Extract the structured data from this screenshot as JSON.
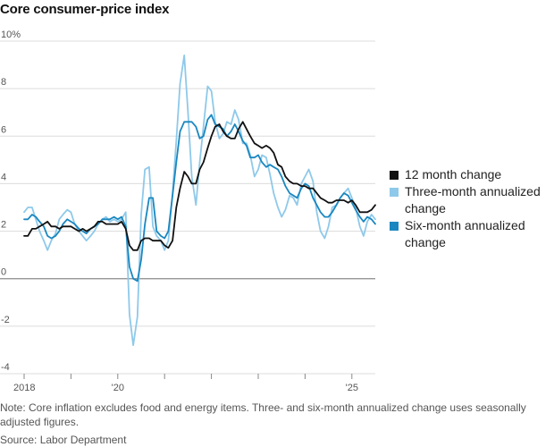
{
  "chart_data": {
    "type": "line",
    "title": "Core consumer-price index",
    "x_tick_labels": [
      "2018",
      "'20",
      "'25"
    ],
    "x_tick_years": [
      2018,
      2020,
      2025
    ],
    "xlim": [
      2018.0,
      2025.5
    ],
    "y_tick_labels": [
      "10%",
      "8",
      "6",
      "4",
      "2",
      "0",
      "-2",
      "-4"
    ],
    "y_tick_values": [
      10,
      8,
      6,
      4,
      2,
      0,
      -2,
      -4
    ],
    "ylim": [
      -4,
      10
    ],
    "grid": "horizontal",
    "legend_position": "right",
    "series": [
      {
        "name": "12 month change",
        "color": "#111111",
        "x": [
          2018.0,
          2018.08,
          2018.17,
          2018.25,
          2018.33,
          2018.42,
          2018.5,
          2018.58,
          2018.67,
          2018.75,
          2018.83,
          2018.92,
          2019.0,
          2019.08,
          2019.17,
          2019.25,
          2019.33,
          2019.42,
          2019.5,
          2019.58,
          2019.67,
          2019.75,
          2019.83,
          2019.92,
          2020.0,
          2020.08,
          2020.17,
          2020.25,
          2020.33,
          2020.42,
          2020.5,
          2020.58,
          2020.67,
          2020.75,
          2020.83,
          2020.92,
          2021.0,
          2021.08,
          2021.17,
          2021.25,
          2021.33,
          2021.42,
          2021.5,
          2021.58,
          2021.67,
          2021.75,
          2021.83,
          2021.92,
          2022.0,
          2022.08,
          2022.17,
          2022.25,
          2022.33,
          2022.42,
          2022.5,
          2022.58,
          2022.67,
          2022.75,
          2022.83,
          2022.92,
          2023.0,
          2023.08,
          2023.17,
          2023.25,
          2023.33,
          2023.42,
          2023.5,
          2023.58,
          2023.67,
          2023.75,
          2023.83,
          2023.92,
          2024.0,
          2024.08,
          2024.17,
          2024.25,
          2024.33,
          2024.42,
          2024.5,
          2024.58,
          2024.67,
          2024.75,
          2024.83,
          2024.92,
          2025.0,
          2025.08,
          2025.17,
          2025.25,
          2025.33,
          2025.42,
          2025.5
        ],
        "values": [
          1.8,
          1.8,
          2.1,
          2.1,
          2.2,
          2.3,
          2.4,
          2.2,
          2.2,
          2.1,
          2.2,
          2.2,
          2.2,
          2.1,
          2.0,
          2.1,
          2.0,
          2.1,
          2.2,
          2.4,
          2.4,
          2.3,
          2.3,
          2.3,
          2.3,
          2.4,
          2.1,
          1.4,
          1.2,
          1.2,
          1.6,
          1.7,
          1.7,
          1.6,
          1.6,
          1.6,
          1.4,
          1.3,
          1.6,
          3.0,
          3.8,
          4.5,
          4.3,
          4.0,
          4.0,
          4.6,
          4.9,
          5.5,
          6.0,
          6.4,
          6.5,
          6.2,
          6.0,
          5.9,
          5.9,
          6.3,
          6.6,
          6.3,
          6.0,
          5.7,
          5.6,
          5.5,
          5.6,
          5.5,
          5.3,
          4.8,
          4.7,
          4.3,
          4.1,
          4.0,
          4.0,
          3.9,
          3.9,
          3.8,
          3.8,
          3.6,
          3.4,
          3.3,
          3.2,
          3.2,
          3.3,
          3.3,
          3.3,
          3.2,
          3.3,
          3.1,
          2.8,
          2.8,
          2.8,
          2.9,
          3.1
        ]
      },
      {
        "name": "Three-month annualized change",
        "color": "#8ec9ea",
        "x": [
          2018.0,
          2018.08,
          2018.17,
          2018.25,
          2018.33,
          2018.42,
          2018.5,
          2018.58,
          2018.67,
          2018.75,
          2018.83,
          2018.92,
          2019.0,
          2019.08,
          2019.17,
          2019.25,
          2019.33,
          2019.42,
          2019.5,
          2019.58,
          2019.67,
          2019.75,
          2019.83,
          2019.92,
          2020.0,
          2020.08,
          2020.17,
          2020.25,
          2020.33,
          2020.42,
          2020.5,
          2020.58,
          2020.67,
          2020.75,
          2020.83,
          2020.92,
          2021.0,
          2021.08,
          2021.17,
          2021.25,
          2021.33,
          2021.42,
          2021.5,
          2021.58,
          2021.67,
          2021.75,
          2021.83,
          2021.92,
          2022.0,
          2022.08,
          2022.17,
          2022.25,
          2022.33,
          2022.42,
          2022.5,
          2022.58,
          2022.67,
          2022.75,
          2022.83,
          2022.92,
          2023.0,
          2023.08,
          2023.17,
          2023.25,
          2023.33,
          2023.42,
          2023.5,
          2023.58,
          2023.67,
          2023.75,
          2023.83,
          2023.92,
          2024.0,
          2024.08,
          2024.17,
          2024.25,
          2024.33,
          2024.42,
          2024.5,
          2024.58,
          2024.67,
          2024.75,
          2024.83,
          2024.92,
          2025.0,
          2025.08,
          2025.17,
          2025.25,
          2025.33,
          2025.42,
          2025.5
        ],
        "values": [
          2.8,
          3.0,
          3.0,
          2.5,
          2.0,
          1.6,
          1.2,
          1.6,
          1.9,
          2.5,
          2.7,
          2.9,
          2.8,
          2.3,
          2.0,
          1.8,
          1.6,
          1.8,
          2.0,
          2.3,
          2.5,
          2.6,
          2.4,
          2.5,
          2.4,
          2.5,
          2.8,
          -1.5,
          -2.8,
          -1.6,
          2.7,
          4.6,
          4.7,
          2.2,
          1.8,
          1.6,
          1.2,
          1.6,
          3.6,
          5.8,
          8.2,
          9.4,
          7.0,
          4.3,
          3.1,
          4.9,
          6.4,
          8.1,
          7.9,
          6.6,
          5.9,
          6.1,
          6.6,
          6.5,
          7.1,
          6.7,
          5.7,
          5.7,
          5.2,
          4.3,
          4.6,
          5.2,
          5.1,
          4.4,
          3.6,
          3.0,
          2.6,
          2.9,
          3.5,
          3.4,
          3.1,
          4.0,
          4.3,
          4.6,
          4.1,
          2.8,
          2.0,
          1.7,
          2.2,
          3.0,
          3.1,
          3.4,
          3.6,
          3.8,
          3.4,
          3.0,
          2.2,
          1.8,
          2.4,
          2.7,
          2.5
        ]
      },
      {
        "name": "Six-month annualized change",
        "color": "#1a87c0",
        "x": [
          2018.0,
          2018.08,
          2018.17,
          2018.25,
          2018.33,
          2018.42,
          2018.5,
          2018.58,
          2018.67,
          2018.75,
          2018.83,
          2018.92,
          2019.0,
          2019.08,
          2019.17,
          2019.25,
          2019.33,
          2019.42,
          2019.5,
          2019.58,
          2019.67,
          2019.75,
          2019.83,
          2019.92,
          2020.0,
          2020.08,
          2020.17,
          2020.25,
          2020.33,
          2020.42,
          2020.5,
          2020.58,
          2020.67,
          2020.75,
          2020.83,
          2020.92,
          2021.0,
          2021.08,
          2021.17,
          2021.25,
          2021.33,
          2021.42,
          2021.5,
          2021.58,
          2021.67,
          2021.75,
          2021.83,
          2021.92,
          2022.0,
          2022.08,
          2022.17,
          2022.25,
          2022.33,
          2022.42,
          2022.5,
          2022.58,
          2022.67,
          2022.75,
          2022.83,
          2022.92,
          2023.0,
          2023.08,
          2023.17,
          2023.25,
          2023.33,
          2023.42,
          2023.5,
          2023.58,
          2023.67,
          2023.75,
          2023.83,
          2023.92,
          2024.0,
          2024.08,
          2024.17,
          2024.25,
          2024.33,
          2024.42,
          2024.5,
          2024.58,
          2024.67,
          2024.75,
          2024.83,
          2024.92,
          2025.0,
          2025.08,
          2025.17,
          2025.25,
          2025.33,
          2025.42,
          2025.5
        ],
        "values": [
          2.5,
          2.5,
          2.7,
          2.6,
          2.4,
          2.2,
          1.8,
          1.7,
          1.8,
          2.0,
          2.3,
          2.5,
          2.4,
          2.3,
          2.1,
          2.0,
          1.9,
          2.1,
          2.2,
          2.3,
          2.5,
          2.5,
          2.5,
          2.6,
          2.5,
          2.6,
          2.2,
          0.5,
          0.0,
          -0.1,
          0.8,
          2.3,
          3.4,
          3.4,
          2.0,
          1.8,
          1.7,
          2.0,
          3.5,
          4.9,
          6.2,
          6.6,
          6.6,
          6.6,
          6.4,
          5.9,
          6.0,
          6.7,
          6.9,
          6.5,
          6.4,
          6.3,
          6.0,
          6.2,
          6.5,
          6.2,
          5.8,
          5.6,
          5.1,
          5.1,
          5.2,
          4.9,
          4.7,
          4.8,
          4.7,
          4.6,
          4.3,
          3.9,
          3.6,
          3.5,
          3.4,
          3.8,
          4.0,
          3.9,
          3.4,
          3.1,
          2.8,
          2.6,
          2.6,
          2.8,
          3.1,
          3.4,
          3.6,
          3.5,
          3.2,
          2.9,
          2.6,
          2.4,
          2.6,
          2.5,
          2.3
        ]
      }
    ]
  },
  "note": "Note: Core inflation excludes food and energy items. Three- and six-month annualized change uses seasonally adjusted figures.",
  "source": "Source: Labor Department",
  "legend": [
    {
      "label": "12 month change",
      "color": "#111111"
    },
    {
      "label": "Three-month annualized change",
      "color": "#8ec9ea"
    },
    {
      "label": "Six-month annualized change",
      "color": "#1a87c0"
    }
  ]
}
